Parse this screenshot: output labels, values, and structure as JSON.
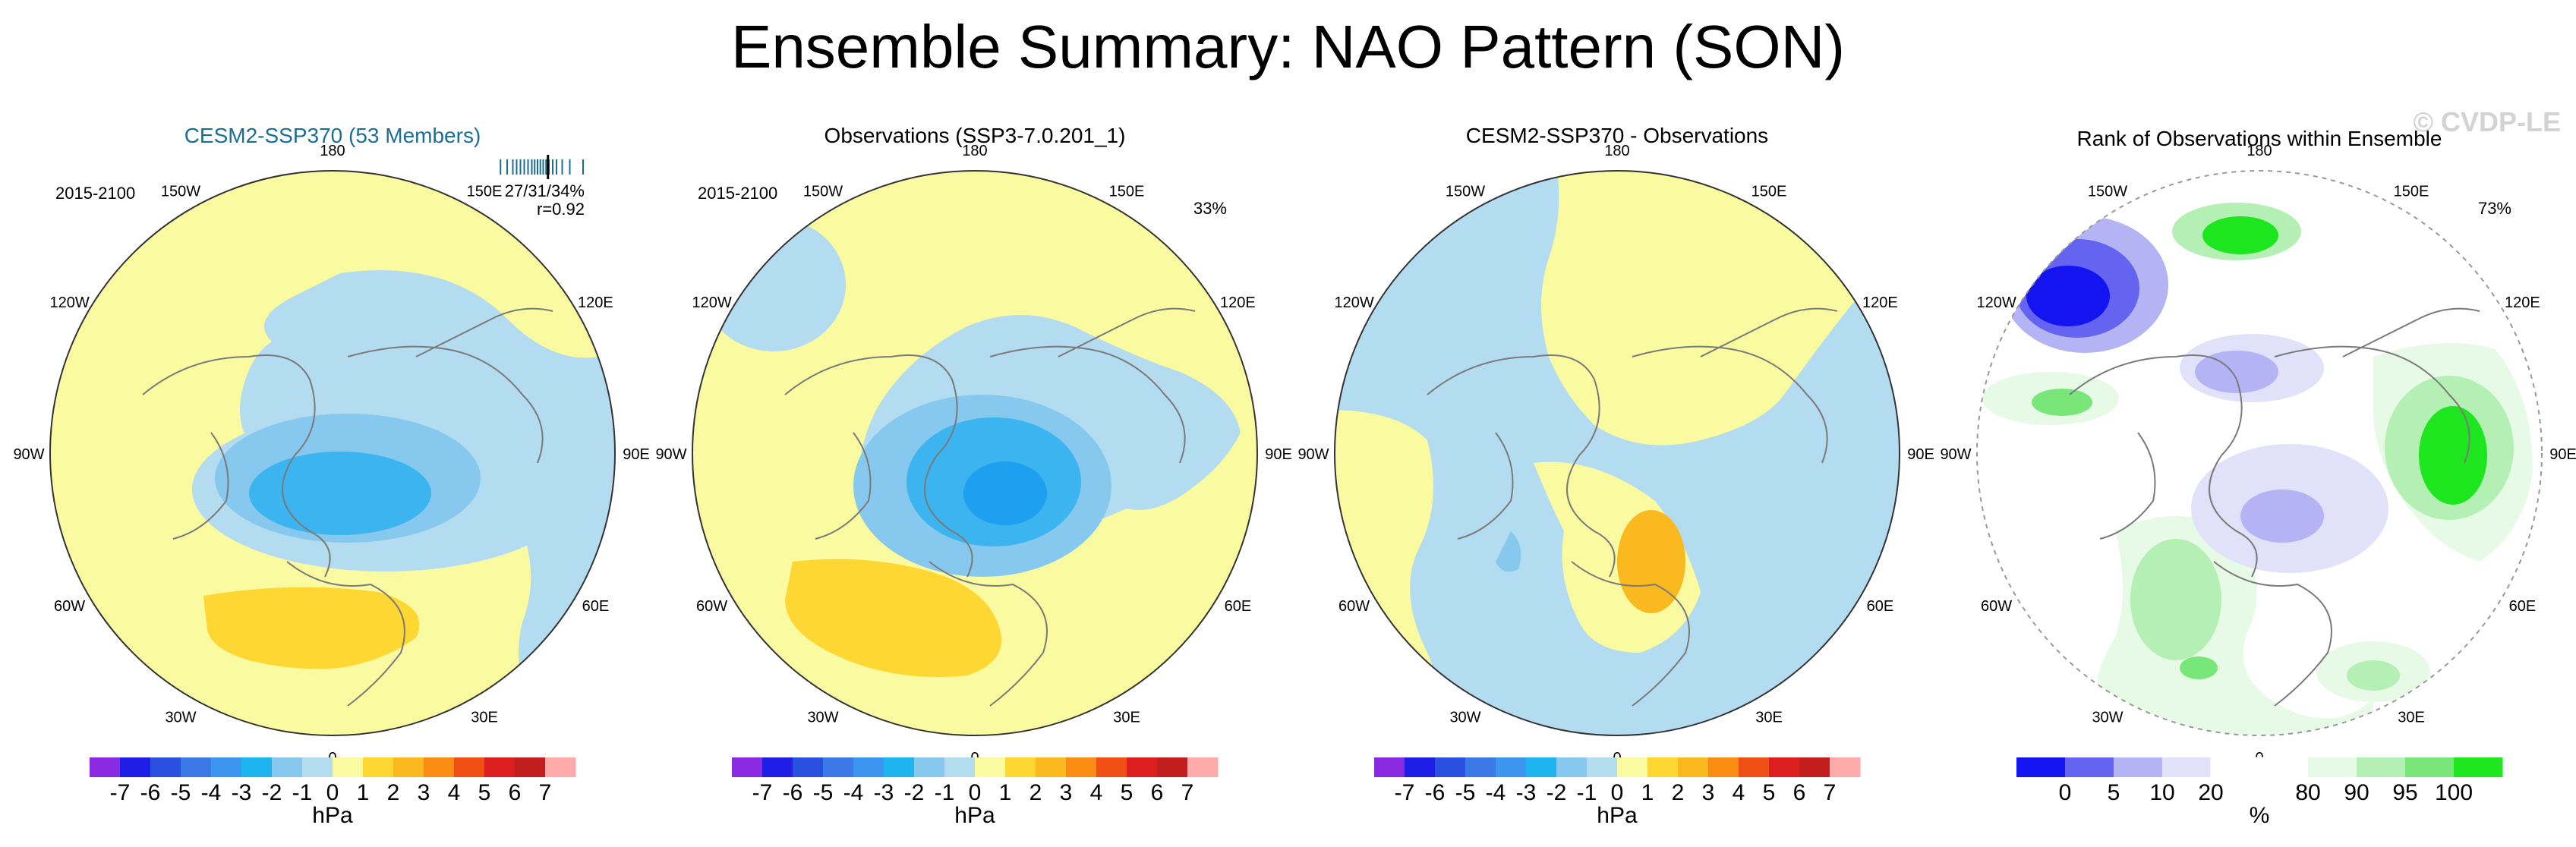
{
  "figure": {
    "title": "Ensemble Summary: NAO Pattern (SON)",
    "watermark": "© CVDP-LE"
  },
  "colors": {
    "title_blue": "#1a6e96",
    "hpa_scale": [
      "#8a2be2",
      "#1e1ee6",
      "#2a50e0",
      "#3c78e6",
      "#3c96f0",
      "#1eb4f0",
      "#87c8ee",
      "#b4dcf0",
      "#fafaa0",
      "#ffd732",
      "#fab91e",
      "#fa8c14",
      "#f05014",
      "#dc1e1e",
      "#c31e1e",
      "#ffaaaa"
    ],
    "rank_scale": [
      "#1414f0",
      "#6464f0",
      "#b4b4f5",
      "#e1e1fa",
      "#ffffff",
      "#ffffff",
      "#e6fae6",
      "#b4f0b4",
      "#78e678",
      "#1ee61e"
    ]
  },
  "chart_data": [
    {
      "type": "heatmap",
      "subtype": "polar stereographic map",
      "title": "CESM2-SSP370 (53 Members)",
      "period": "2015-2100",
      "stats_line1": "27/31/34%",
      "stats_line2": "r=0.92",
      "ensemble_ticks": [
        0.05,
        0.12,
        0.18,
        0.22,
        0.26,
        0.3,
        0.34,
        0.38,
        0.41,
        0.44,
        0.47,
        0.5,
        0.53,
        0.56,
        0.6,
        0.64,
        0.7,
        0.78,
        0.92
      ],
      "observed_tick": 0.55,
      "longitude_labels": [
        "180",
        "150E",
        "120E",
        "90E",
        "60E",
        "30E",
        "0",
        "30W",
        "60W",
        "90W",
        "120W",
        "150W"
      ],
      "colorbar": {
        "labels": [
          "-7",
          "-6",
          "-5",
          "-4",
          "-3",
          "-2",
          "-1",
          "0",
          "1",
          "2",
          "3",
          "4",
          "5",
          "6",
          "7"
        ],
        "units": "hPa"
      }
    },
    {
      "type": "heatmap",
      "subtype": "polar stereographic map",
      "title": "Observations (SSP3-7.0.201_1)",
      "period": "2015-2100",
      "pct": "33%",
      "longitude_labels": [
        "180",
        "150E",
        "120E",
        "90E",
        "60E",
        "30E",
        "0",
        "30W",
        "60W",
        "90W",
        "120W",
        "150W"
      ],
      "colorbar": {
        "labels": [
          "-7",
          "-6",
          "-5",
          "-4",
          "-3",
          "-2",
          "-1",
          "0",
          "1",
          "2",
          "3",
          "4",
          "5",
          "6",
          "7"
        ],
        "units": "hPa"
      }
    },
    {
      "type": "heatmap",
      "subtype": "polar stereographic map",
      "title": "CESM2-SSP370 - Observations",
      "longitude_labels": [
        "180",
        "150E",
        "120E",
        "90E",
        "60E",
        "30E",
        "0",
        "30W",
        "60W",
        "90W",
        "120W",
        "150W"
      ],
      "colorbar": {
        "labels": [
          "-7",
          "-6",
          "-5",
          "-4",
          "-3",
          "-2",
          "-1",
          "0",
          "1",
          "2",
          "3",
          "4",
          "5",
          "6",
          "7"
        ],
        "units": "hPa"
      }
    },
    {
      "type": "heatmap",
      "subtype": "polar stereographic map",
      "title": "Rank of Observations within Ensemble",
      "pct": "73%",
      "longitude_labels": [
        "180",
        "150E",
        "120E",
        "90E",
        "60E",
        "30E",
        "0",
        "30W",
        "60W",
        "90W",
        "120W",
        "150W"
      ],
      "colorbar": {
        "labels": [
          "0",
          "5",
          "10",
          "20",
          "80",
          "90",
          "95",
          "100"
        ],
        "units": "%"
      }
    }
  ]
}
